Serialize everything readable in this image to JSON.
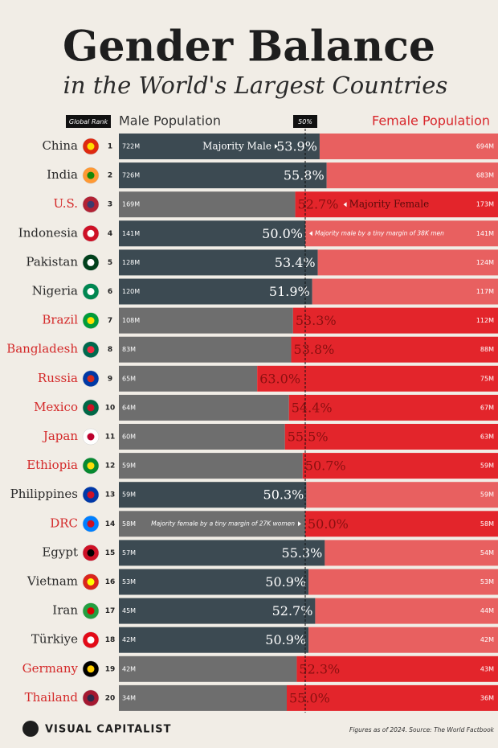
{
  "chart_data": {
    "type": "diverging-bar",
    "title": "Gender Balance",
    "subtitle": "in the World's Largest Countries",
    "rank_header": "Global Rank",
    "male_header": "Male Population",
    "female_header": "Female Population",
    "midline": {
      "value": 50,
      "label": "50%"
    },
    "categories": [
      "China",
      "India",
      "U.S.",
      "Indonesia",
      "Pakistan",
      "Nigeria",
      "Brazil",
      "Bangladesh",
      "Russia",
      "Mexico",
      "Japan",
      "Ethiopia",
      "Philippines",
      "DRC",
      "Egypt",
      "Vietnam",
      "Iran",
      "Türkiye",
      "Germany",
      "Thailand"
    ],
    "ranks": [
      "1",
      "2",
      "3",
      "4",
      "5",
      "6",
      "7",
      "8",
      "9",
      "10",
      "11",
      "12",
      "13",
      "14",
      "15",
      "16",
      "17",
      "18",
      "19",
      "20"
    ],
    "majority": [
      "male",
      "male",
      "female",
      "male",
      "male",
      "male",
      "female",
      "female",
      "female",
      "female",
      "female",
      "female",
      "male",
      "female",
      "male",
      "male",
      "male",
      "male",
      "female",
      "female"
    ],
    "values": [
      53.9,
      55.8,
      52.7,
      50.0,
      53.4,
      51.9,
      53.3,
      53.8,
      63.0,
      54.4,
      55.5,
      50.7,
      50.3,
      50.0,
      55.3,
      50.9,
      52.7,
      50.9,
      52.3,
      55.0
    ],
    "value_labels": [
      "53.9%",
      "55.8%",
      "52.7%",
      "50.0%",
      "53.4%",
      "51.9%",
      "53.3%",
      "53.8%",
      "63.0%",
      "54.4%",
      "55.5%",
      "50.7%",
      "50.3%",
      "50.0%",
      "55.3%",
      "50.9%",
      "52.7%",
      "50.9%",
      "52.3%",
      "55.0%"
    ],
    "male_population": [
      "722M",
      "726M",
      "169M",
      "141M",
      "128M",
      "120M",
      "108M",
      "83M",
      "65M",
      "64M",
      "60M",
      "59M",
      "59M",
      "58M",
      "57M",
      "53M",
      "45M",
      "42M",
      "42M",
      "34M"
    ],
    "female_population": [
      "694M",
      "683M",
      "173M",
      "141M",
      "124M",
      "117M",
      "112M",
      "88M",
      "75M",
      "67M",
      "63M",
      "59M",
      "59M",
      "58M",
      "54M",
      "53M",
      "44M",
      "42M",
      "43M",
      "36M"
    ],
    "annotations": [
      {
        "row": 0,
        "side": "left",
        "text": "Majority Male"
      },
      {
        "row": 2,
        "side": "right",
        "text": "Majority Female"
      },
      {
        "row": 3,
        "side": "right",
        "text": "Majority male by a tiny margin of 38K men"
      },
      {
        "row": 13,
        "side": "left",
        "text": "Majority female by a tiny margin of 27K women"
      }
    ],
    "brand": "VISUAL CAPITALIST",
    "note": "Figures as of 2024. Source: The World Factbook"
  }
}
